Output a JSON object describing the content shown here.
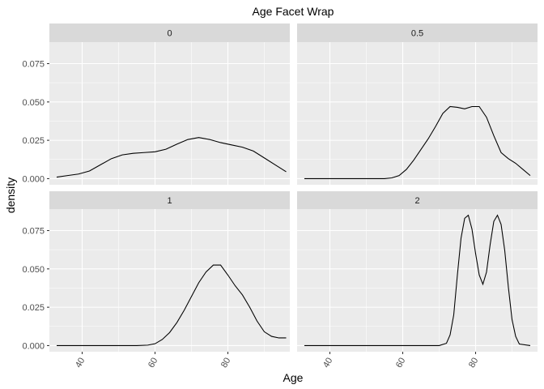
{
  "chart_data": {
    "type": "line",
    "chart_kind": "density facet wrap",
    "title": "Age Facet Wrap",
    "xlabel": "Age",
    "ylabel": "density",
    "xlim": [
      31,
      97
    ],
    "ylim": [
      -0.004,
      0.089
    ],
    "x_ticks": [
      40,
      60,
      80
    ],
    "y_ticks": [
      0.0,
      0.025,
      0.05,
      0.075
    ],
    "y_tick_labels": [
      "0.000",
      "0.025",
      "0.050",
      "0.075"
    ],
    "x_tick_label_angle": -60,
    "grid": true,
    "background_color": "#ebebeb",
    "strip_color": "#d9d9d9",
    "line_color": "#000000",
    "panels": [
      {
        "label": "0",
        "x": [
          33,
          36,
          39,
          42,
          45,
          48,
          51,
          54,
          57,
          60,
          63,
          66,
          69,
          72,
          75,
          78,
          81,
          84,
          87,
          90,
          93,
          96
        ],
        "y": [
          0.001,
          0.002,
          0.003,
          0.005,
          0.009,
          0.013,
          0.0155,
          0.0165,
          0.017,
          0.0175,
          0.0192,
          0.0225,
          0.0255,
          0.0268,
          0.0255,
          0.0235,
          0.022,
          0.0205,
          0.018,
          0.0135,
          0.009,
          0.0045
        ]
      },
      {
        "label": "0.5",
        "x": [
          33,
          45,
          55,
          57,
          59,
          61,
          63,
          65,
          67,
          69,
          71,
          73,
          75,
          77,
          79,
          81,
          83,
          85,
          87,
          89,
          91,
          93,
          95
        ],
        "y": [
          0.0,
          0.0,
          0.0,
          0.0005,
          0.002,
          0.006,
          0.012,
          0.019,
          0.026,
          0.034,
          0.0425,
          0.047,
          0.0465,
          0.0455,
          0.047,
          0.047,
          0.04,
          0.028,
          0.017,
          0.013,
          0.01,
          0.006,
          0.002
        ]
      },
      {
        "label": "1",
        "x": [
          33,
          45,
          55,
          58,
          60,
          62,
          64,
          66,
          68,
          70,
          72,
          74,
          76,
          78,
          80,
          82,
          84,
          86,
          88,
          90,
          92,
          94,
          96
        ],
        "y": [
          0.0,
          0.0,
          0.0,
          0.0003,
          0.0012,
          0.004,
          0.0085,
          0.015,
          0.023,
          0.032,
          0.041,
          0.048,
          0.0525,
          0.0525,
          0.046,
          0.039,
          0.033,
          0.025,
          0.016,
          0.009,
          0.006,
          0.005,
          0.005
        ]
      },
      {
        "label": "2",
        "x": [
          33,
          50,
          70,
          72,
          73,
          74,
          75,
          76,
          77,
          78,
          79,
          80,
          81,
          82,
          83,
          84,
          85,
          86,
          87,
          88,
          89,
          90,
          91,
          92,
          95
        ],
        "y": [
          0.0,
          0.0,
          0.0,
          0.0015,
          0.007,
          0.02,
          0.046,
          0.07,
          0.083,
          0.085,
          0.076,
          0.06,
          0.046,
          0.04,
          0.048,
          0.066,
          0.081,
          0.085,
          0.079,
          0.062,
          0.038,
          0.017,
          0.006,
          0.001,
          0.0
        ]
      }
    ]
  }
}
